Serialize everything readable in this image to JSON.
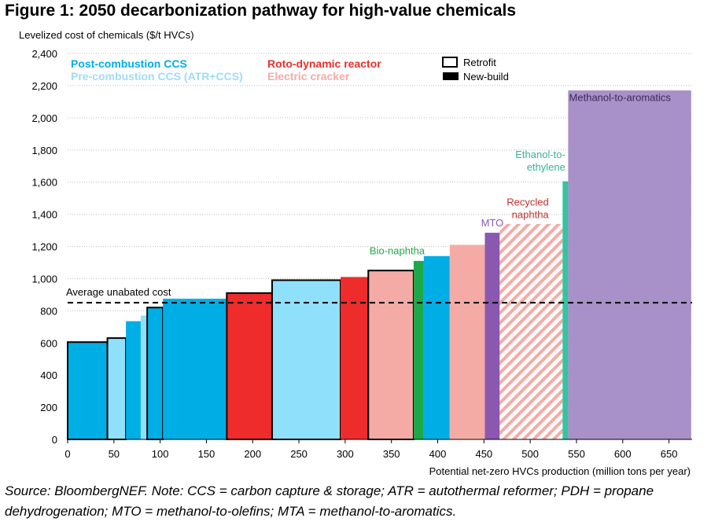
{
  "title": "Figure 1: 2050 decarbonization pathway for high-value chemicals",
  "note": "Source: BloombergNEF. Note: CCS = carbon capture & storage; ATR = autothermal reformer; PDH = propane dehydrogenation; MTO = methanol-to-olefins; MTA = methanol-to-aromatics.",
  "colors": {
    "post_ccs": "#00aee6",
    "pre_ccs": "#8fe0fa",
    "roto": "#ee2c2c",
    "electric": "#f4aba6",
    "bio": "#1fa84a",
    "mto": "#8a58b0",
    "recycled": "#f4aba6",
    "ethanol": "#34c4a1",
    "mta": "#a890c8",
    "post_ccs_text": "#00aee6",
    "pre_ccs_text": "#9fdcf5",
    "roto_text": "#e8312b",
    "electric_text": "#f4aba6",
    "bio_text": "#1fa84a",
    "mto_text": "#8a58b0",
    "recycled_text": "#c0322b",
    "ethanol_text": "#34b39a",
    "mta_text": "#3b2a55"
  },
  "chart_data": {
    "type": "bar",
    "subtype": "variable-width cost curve",
    "xlabel": "Potential net-zero HVCs production (million tons per year)",
    "ylabel": "Levelized cost of chemicals ($/t HVCs)",
    "xlim": [
      0,
      675
    ],
    "ylim": [
      0,
      2400
    ],
    "xticks": [
      "0",
      "50",
      "100",
      "150",
      "200",
      "250",
      "300",
      "350",
      "400",
      "450",
      "500",
      "550",
      "600",
      "650"
    ],
    "yticks": [
      "0",
      "200",
      "400",
      "600",
      "800",
      "1,000",
      "1,200",
      "1,400",
      "1,600",
      "1,800",
      "2,000",
      "2,200",
      "2,400"
    ],
    "grid": true,
    "reference_line": {
      "label": "Average unabated cost",
      "value": 850
    },
    "legend": {
      "technologies": [
        {
          "label": "Post-combustion CCS",
          "color_key": "post_ccs_text"
        },
        {
          "label": "Pre-combustion CCS (ATR+CCS)",
          "color_key": "pre_ccs_text"
        },
        {
          "label": "Roto-dynamic reactor",
          "color_key": "roto_text"
        },
        {
          "label": "Electric cracker",
          "color_key": "electric_text"
        }
      ],
      "plant_types": [
        {
          "label": "Retrofit",
          "style": "outline"
        },
        {
          "label": "New-build",
          "style": "solid"
        }
      ]
    },
    "bars": [
      {
        "x0": 0,
        "x1": 43,
        "value": 605,
        "tech": "post_ccs",
        "build": "retrofit"
      },
      {
        "x0": 43,
        "x1": 63,
        "value": 630,
        "tech": "pre_ccs",
        "build": "retrofit"
      },
      {
        "x0": 63,
        "x1": 79,
        "value": 735,
        "tech": "post_ccs",
        "build": "new"
      },
      {
        "x0": 79,
        "x1": 86,
        "value": 770,
        "tech": "pre_ccs",
        "build": "new"
      },
      {
        "x0": 86,
        "x1": 103,
        "value": 820,
        "tech": "post_ccs",
        "build": "retrofit"
      },
      {
        "x0": 103,
        "x1": 172,
        "value": 875,
        "tech": "post_ccs",
        "build": "new"
      },
      {
        "x0": 172,
        "x1": 221,
        "value": 910,
        "tech": "roto",
        "build": "retrofit"
      },
      {
        "x0": 221,
        "x1": 295,
        "value": 990,
        "tech": "pre_ccs",
        "build": "retrofit"
      },
      {
        "x0": 295,
        "x1": 325,
        "value": 1010,
        "tech": "roto",
        "build": "new"
      },
      {
        "x0": 325,
        "x1": 374,
        "value": 1050,
        "tech": "electric",
        "build": "retrofit"
      },
      {
        "x0": 374,
        "x1": 385,
        "value": 1110,
        "tech": "bio",
        "build": "new"
      },
      {
        "x0": 385,
        "x1": 413,
        "value": 1140,
        "tech": "post_ccs",
        "build": "new"
      },
      {
        "x0": 413,
        "x1": 451,
        "value": 1210,
        "tech": "electric",
        "build": "new"
      },
      {
        "x0": 451,
        "x1": 467,
        "value": 1285,
        "tech": "mto",
        "build": "new"
      },
      {
        "x0": 467,
        "x1": 535,
        "value": 1340,
        "tech": "recycled",
        "build": "new",
        "pattern": "hatched"
      },
      {
        "x0": 535,
        "x1": 541,
        "value": 1605,
        "tech": "ethanol",
        "build": "new"
      },
      {
        "x0": 541,
        "x1": 674,
        "value": 2170,
        "tech": "mta",
        "build": "new"
      }
    ],
    "annotations": [
      {
        "label": "Bio-naphtha",
        "color_key": "bio_text",
        "x": 386,
        "y": 1150,
        "lines": [
          "Bio-naphtha"
        ],
        "align": "end"
      },
      {
        "label": "MTO",
        "color_key": "mto_text",
        "x": 459,
        "y": 1325,
        "lines": [
          "MTO"
        ],
        "align": "middle"
      },
      {
        "label": "Recycled naphtha",
        "color_key": "recycled_text",
        "x": 520,
        "y": 1455,
        "lines": [
          "Recycled",
          "naphtha"
        ],
        "align": "end"
      },
      {
        "label": "Ethanol-to-ethylene",
        "color_key": "ethanol_text",
        "x": 538,
        "y": 1750,
        "lines": [
          "Ethanol-to-",
          "ethylene"
        ],
        "align": "end"
      },
      {
        "label": "Methanol-to-aromatics",
        "color_key": "mta_text",
        "x": 542,
        "y": 2105,
        "lines": [
          "Methanol-to-aromatics"
        ],
        "align": "start"
      }
    ]
  }
}
